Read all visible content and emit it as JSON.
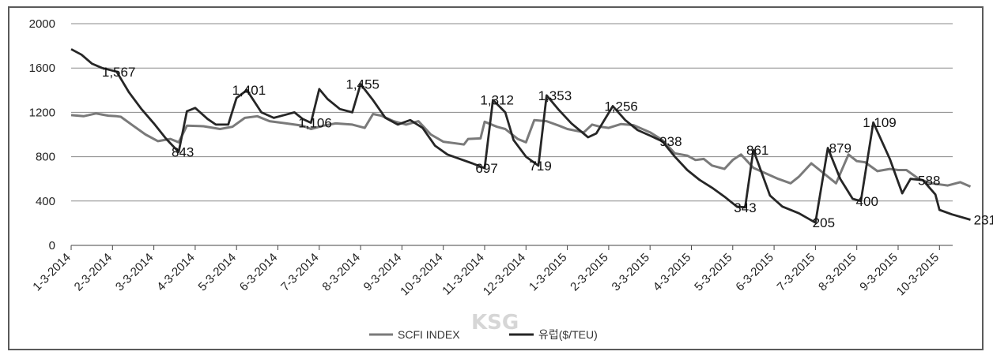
{
  "chart_data": {
    "type": "line",
    "ylim": [
      0,
      2000
    ],
    "yticks": [
      "0",
      "400",
      "800",
      "1200",
      "1600",
      "2000"
    ],
    "grid": "horizontal",
    "legend_position": "bottom",
    "xtick_labels": [
      "1-3-2014",
      "2-3-2014",
      "3-3-2014",
      "4-3-2014",
      "5-3-2014",
      "6-3-2014",
      "7-3-2014",
      "8-3-2014",
      "9-3-2014",
      "10-3-2014",
      "11-3-2014",
      "12-3-2014",
      "1-3-2015",
      "2-3-2015",
      "3-3-2015",
      "4-3-2015",
      "5-3-2015",
      "6-3-2015",
      "7-3-2015",
      "8-3-2015",
      "9-3-2015",
      "10-3-2015"
    ],
    "series": [
      {
        "name": "SCFI INDEX",
        "color": "#7a7a7a",
        "points": [
          [
            0,
            1175
          ],
          [
            0.3,
            1165
          ],
          [
            0.6,
            1190
          ],
          [
            0.9,
            1170
          ],
          [
            1.1,
            1165
          ],
          [
            1.2,
            1160
          ],
          [
            1.5,
            1080
          ],
          [
            1.8,
            1000
          ],
          [
            2.1,
            940
          ],
          [
            2.4,
            960
          ],
          [
            2.6,
            930
          ],
          [
            2.8,
            1080
          ],
          [
            3.2,
            1075
          ],
          [
            3.6,
            1050
          ],
          [
            3.9,
            1070
          ],
          [
            4.2,
            1150
          ],
          [
            4.5,
            1165
          ],
          [
            4.8,
            1120
          ],
          [
            5.2,
            1100
          ],
          [
            5.6,
            1080
          ],
          [
            5.8,
            1050
          ],
          [
            6.1,
            1080
          ],
          [
            6.4,
            1100
          ],
          [
            6.8,
            1090
          ],
          [
            7.1,
            1060
          ],
          [
            7.3,
            1185
          ],
          [
            7.5,
            1170
          ],
          [
            7.8,
            1120
          ],
          [
            8.1,
            1090
          ],
          [
            8.4,
            1120
          ],
          [
            8.7,
            1000
          ],
          [
            9.0,
            935
          ],
          [
            9.3,
            920
          ],
          [
            9.5,
            910
          ],
          [
            9.6,
            960
          ],
          [
            9.9,
            965
          ],
          [
            10.0,
            1115
          ],
          [
            10.3,
            1070
          ],
          [
            10.5,
            1050
          ],
          [
            10.8,
            960
          ],
          [
            11.0,
            930
          ],
          [
            11.2,
            1130
          ],
          [
            11.5,
            1120
          ],
          [
            11.8,
            1080
          ],
          [
            12.0,
            1050
          ],
          [
            12.4,
            1020
          ],
          [
            12.6,
            1090
          ],
          [
            12.8,
            1070
          ],
          [
            13.0,
            1060
          ],
          [
            13.3,
            1095
          ],
          [
            13.6,
            1085
          ],
          [
            14.0,
            1020
          ],
          [
            14.3,
            950
          ],
          [
            14.6,
            830
          ],
          [
            14.9,
            810
          ],
          [
            15.1,
            770
          ],
          [
            15.3,
            780
          ],
          [
            15.5,
            720
          ],
          [
            15.8,
            690
          ],
          [
            16.0,
            770
          ],
          [
            16.2,
            820
          ],
          [
            16.5,
            700
          ],
          [
            16.8,
            650
          ],
          [
            17.1,
            600
          ],
          [
            17.4,
            560
          ],
          [
            17.6,
            620
          ],
          [
            17.9,
            740
          ],
          [
            18.2,
            650
          ],
          [
            18.5,
            560
          ],
          [
            18.8,
            820
          ],
          [
            19.0,
            760
          ],
          [
            19.2,
            750
          ],
          [
            19.5,
            670
          ],
          [
            19.8,
            690
          ],
          [
            20.0,
            680
          ],
          [
            20.2,
            680
          ],
          [
            20.5,
            600
          ],
          [
            20.8,
            560
          ],
          [
            21.0,
            550
          ],
          [
            21.2,
            540
          ],
          [
            21.5,
            570
          ],
          [
            21.75,
            530
          ]
        ]
      },
      {
        "name": "유럽($/TEU)",
        "color": "#262626",
        "points": [
          [
            0,
            1770
          ],
          [
            0.25,
            1720
          ],
          [
            0.5,
            1640
          ],
          [
            0.75,
            1600
          ],
          [
            1.1,
            1567
          ],
          [
            1.4,
            1380
          ],
          [
            1.7,
            1230
          ],
          [
            2.0,
            1100
          ],
          [
            2.3,
            960
          ],
          [
            2.6,
            843
          ],
          [
            2.8,
            1210
          ],
          [
            3.0,
            1240
          ],
          [
            3.3,
            1140
          ],
          [
            3.5,
            1090
          ],
          [
            3.8,
            1090
          ],
          [
            4.0,
            1330
          ],
          [
            4.25,
            1401
          ],
          [
            4.6,
            1200
          ],
          [
            4.9,
            1150
          ],
          [
            5.2,
            1180
          ],
          [
            5.4,
            1200
          ],
          [
            5.6,
            1140
          ],
          [
            5.8,
            1106
          ],
          [
            6.0,
            1410
          ],
          [
            6.2,
            1320
          ],
          [
            6.5,
            1230
          ],
          [
            6.8,
            1200
          ],
          [
            7.0,
            1455
          ],
          [
            7.3,
            1310
          ],
          [
            7.6,
            1150
          ],
          [
            7.9,
            1090
          ],
          [
            8.2,
            1130
          ],
          [
            8.5,
            1060
          ],
          [
            8.8,
            900
          ],
          [
            9.1,
            820
          ],
          [
            9.4,
            780
          ],
          [
            9.7,
            740
          ],
          [
            10.0,
            697
          ],
          [
            10.2,
            1312
          ],
          [
            10.5,
            1200
          ],
          [
            10.7,
            950
          ],
          [
            11.0,
            800
          ],
          [
            11.3,
            719
          ],
          [
            11.5,
            1353
          ],
          [
            11.8,
            1220
          ],
          [
            12.1,
            1100
          ],
          [
            12.5,
            975
          ],
          [
            12.7,
            1010
          ],
          [
            13.1,
            1256
          ],
          [
            13.4,
            1130
          ],
          [
            13.7,
            1040
          ],
          [
            14.0,
            990
          ],
          [
            14.3,
            938
          ],
          [
            14.6,
            800
          ],
          [
            14.9,
            680
          ],
          [
            15.2,
            590
          ],
          [
            15.5,
            520
          ],
          [
            15.8,
            440
          ],
          [
            16.1,
            350
          ],
          [
            16.3,
            343
          ],
          [
            16.5,
            861
          ],
          [
            16.9,
            450
          ],
          [
            17.2,
            350
          ],
          [
            17.6,
            290
          ],
          [
            18.0,
            205
          ],
          [
            18.3,
            879
          ],
          [
            18.6,
            600
          ],
          [
            18.9,
            420
          ],
          [
            19.1,
            400
          ],
          [
            19.4,
            1109
          ],
          [
            19.8,
            780
          ],
          [
            20.1,
            470
          ],
          [
            20.3,
            600
          ],
          [
            20.6,
            588
          ],
          [
            20.9,
            460
          ],
          [
            21.0,
            320
          ],
          [
            21.3,
            280
          ],
          [
            21.75,
            231
          ]
        ]
      }
    ],
    "data_labels": [
      {
        "x": 1.15,
        "y": 1567,
        "text": "1,567"
      },
      {
        "x": 2.7,
        "y": 843,
        "text": "843"
      },
      {
        "x": 4.3,
        "y": 1401,
        "text": "1,401"
      },
      {
        "x": 5.9,
        "y": 1106,
        "text": "1,106"
      },
      {
        "x": 7.05,
        "y": 1455,
        "text": "1,455"
      },
      {
        "x": 10.05,
        "y": 697,
        "text": "697"
      },
      {
        "x": 10.3,
        "y": 1312,
        "text": "1,312"
      },
      {
        "x": 11.35,
        "y": 719,
        "text": "719"
      },
      {
        "x": 11.7,
        "y": 1353,
        "text": "1,353"
      },
      {
        "x": 13.3,
        "y": 1256,
        "text": "1,256"
      },
      {
        "x": 14.5,
        "y": 938,
        "text": "938"
      },
      {
        "x": 16.3,
        "y": 343,
        "text": "343"
      },
      {
        "x": 16.6,
        "y": 861,
        "text": "861"
      },
      {
        "x": 18.2,
        "y": 205,
        "text": "205"
      },
      {
        "x": 18.6,
        "y": 879,
        "text": "879"
      },
      {
        "x": 19.25,
        "y": 400,
        "text": "400"
      },
      {
        "x": 19.55,
        "y": 1109,
        "text": "1,109"
      },
      {
        "x": 20.75,
        "y": 588,
        "text": "588"
      },
      {
        "x": 22.1,
        "y": 231,
        "text": "231"
      }
    ]
  },
  "watermark": "KSG"
}
